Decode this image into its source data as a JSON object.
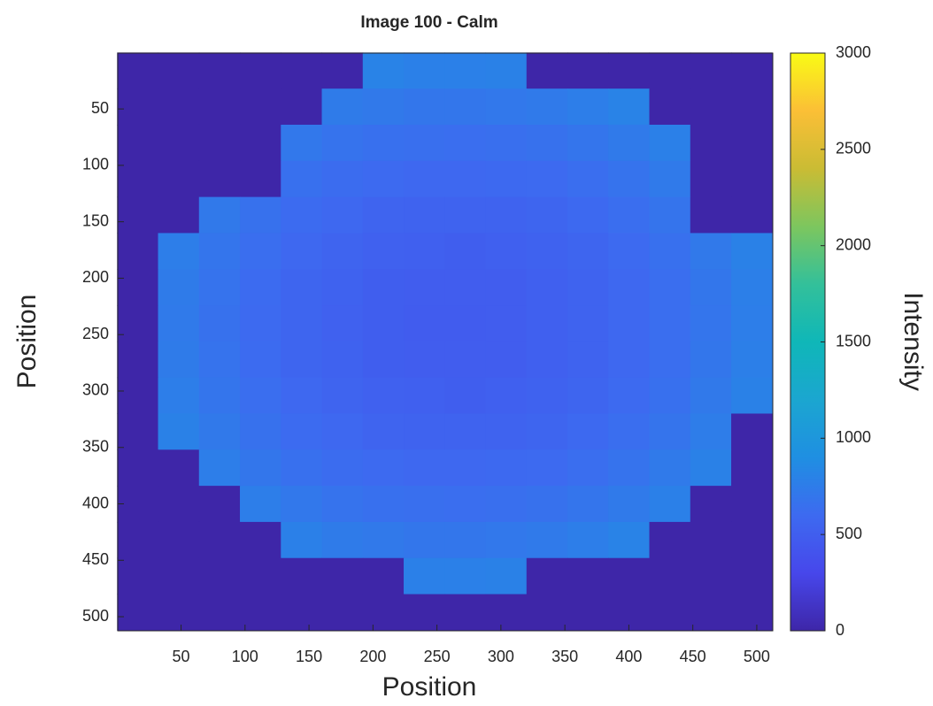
{
  "chart_data": {
    "type": "heatmap",
    "title": "Image 100 - Calm",
    "xlabel": "Position",
    "ylabel": "Position",
    "x": [
      16,
      48,
      80,
      112,
      144,
      176,
      208,
      240,
      272,
      304,
      336,
      368,
      400,
      432,
      464,
      496
    ],
    "y": [
      16,
      48,
      80,
      112,
      144,
      176,
      208,
      240,
      272,
      304,
      336,
      368,
      400,
      432,
      464,
      496
    ],
    "z": [
      [
        0,
        0,
        0,
        0,
        0,
        0,
        800,
        780,
        780,
        790,
        0,
        0,
        0,
        0,
        0,
        0
      ],
      [
        0,
        0,
        0,
        0,
        0,
        740,
        720,
        700,
        700,
        710,
        730,
        760,
        800,
        0,
        0,
        0
      ],
      [
        0,
        0,
        0,
        0,
        710,
        670,
        650,
        640,
        630,
        640,
        660,
        690,
        730,
        780,
        0,
        0
      ],
      [
        0,
        0,
        0,
        0,
        650,
        620,
        600,
        580,
        580,
        590,
        600,
        630,
        670,
        730,
        0,
        0
      ],
      [
        0,
        0,
        720,
        660,
        610,
        580,
        550,
        540,
        540,
        540,
        560,
        590,
        630,
        680,
        0,
        0
      ],
      [
        0,
        760,
        690,
        630,
        580,
        550,
        520,
        510,
        500,
        510,
        530,
        560,
        600,
        650,
        720,
        790
      ],
      [
        0,
        740,
        670,
        610,
        560,
        530,
        500,
        490,
        490,
        490,
        510,
        540,
        580,
        630,
        700,
        770
      ],
      [
        0,
        730,
        660,
        600,
        560,
        520,
        500,
        480,
        480,
        490,
        510,
        540,
        580,
        630,
        690,
        760
      ],
      [
        0,
        740,
        670,
        610,
        560,
        530,
        500,
        490,
        490,
        490,
        510,
        540,
        580,
        630,
        700,
        770
      ],
      [
        0,
        760,
        690,
        630,
        580,
        550,
        520,
        510,
        500,
        510,
        530,
        560,
        600,
        650,
        720,
        790
      ],
      [
        0,
        790,
        720,
        660,
        610,
        580,
        550,
        540,
        540,
        540,
        560,
        590,
        630,
        680,
        750,
        0
      ],
      [
        0,
        0,
        760,
        700,
        650,
        620,
        600,
        580,
        580,
        590,
        600,
        630,
        670,
        730,
        790,
        0
      ],
      [
        0,
        0,
        0,
        760,
        710,
        670,
        650,
        640,
        630,
        640,
        660,
        690,
        730,
        780,
        0,
        0
      ],
      [
        0,
        0,
        0,
        0,
        780,
        740,
        720,
        700,
        700,
        710,
        730,
        760,
        800,
        0,
        0,
        0
      ],
      [
        0,
        0,
        0,
        0,
        0,
        0,
        0,
        780,
        780,
        790,
        0,
        0,
        0,
        0,
        0,
        0
      ],
      [
        0,
        0,
        0,
        0,
        0,
        0,
        0,
        0,
        0,
        0,
        0,
        0,
        0,
        0,
        0,
        0
      ]
    ],
    "xlim": [
      0.5,
      512.5
    ],
    "ylim": [
      0.5,
      512.5
    ],
    "yreverse": true,
    "xticks": [
      50,
      100,
      150,
      200,
      250,
      300,
      350,
      400,
      450,
      500
    ],
    "yticks": [
      50,
      100,
      150,
      200,
      250,
      300,
      350,
      400,
      450,
      500
    ],
    "colormap": [
      "#3e26a8",
      "#4747eb",
      "#3d6af0",
      "#1f8fe2",
      "#1ba6d0",
      "#0fb7b8",
      "#33c09a",
      "#7dc65e",
      "#cabc34",
      "#fbbf36",
      "#f9fb15"
    ],
    "colorbar": {
      "label": "Intensity",
      "clim": [
        0,
        3000
      ],
      "ticks": [
        0,
        500,
        1000,
        1500,
        2000,
        2500,
        3000
      ]
    }
  }
}
